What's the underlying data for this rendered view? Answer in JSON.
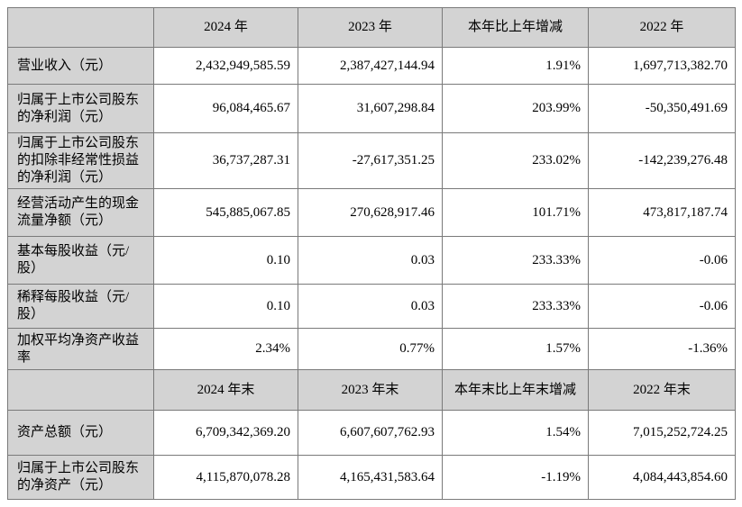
{
  "colors": {
    "shade_bg": "#d3d3d3",
    "border": "#7a7a7a",
    "text": "#000000"
  },
  "table": {
    "section1": {
      "headers": [
        "",
        "2024 年",
        "2023 年",
        "本年比上年增减",
        "2022 年"
      ],
      "rows": [
        {
          "label": "营业收入（元）",
          "values": [
            "2,432,949,585.59",
            "2,387,427,144.94",
            "1.91%",
            "1,697,713,382.70"
          ]
        },
        {
          "label": "归属于上市公司股东的净利润（元）",
          "values": [
            "96,084,465.67",
            "31,607,298.84",
            "203.99%",
            "-50,350,491.69"
          ]
        },
        {
          "label": "归属于上市公司股东的扣除非经常性损益的净利润（元）",
          "values": [
            "36,737,287.31",
            "-27,617,351.25",
            "233.02%",
            "-142,239,276.48"
          ]
        },
        {
          "label": "经营活动产生的现金流量净额（元）",
          "values": [
            "545,885,067.85",
            "270,628,917.46",
            "101.71%",
            "473,817,187.74"
          ]
        },
        {
          "label": "基本每股收益（元/股）",
          "values": [
            "0.10",
            "0.03",
            "233.33%",
            "-0.06"
          ]
        },
        {
          "label": "稀释每股收益（元/股）",
          "values": [
            "0.10",
            "0.03",
            "233.33%",
            "-0.06"
          ]
        },
        {
          "label": "加权平均净资产收益率",
          "values": [
            "2.34%",
            "0.77%",
            "1.57%",
            "-1.36%"
          ]
        }
      ]
    },
    "section2": {
      "headers": [
        "",
        "2024 年末",
        "2023 年末",
        "本年末比上年末增减",
        "2022 年末"
      ],
      "rows": [
        {
          "label": "资产总额（元）",
          "values": [
            "6,709,342,369.20",
            "6,607,607,762.93",
            "1.54%",
            "7,015,252,724.25"
          ]
        },
        {
          "label": "归属于上市公司股东的净资产（元）",
          "values": [
            "4,115,870,078.28",
            "4,165,431,583.64",
            "-1.19%",
            "4,084,443,854.60"
          ]
        }
      ]
    }
  }
}
